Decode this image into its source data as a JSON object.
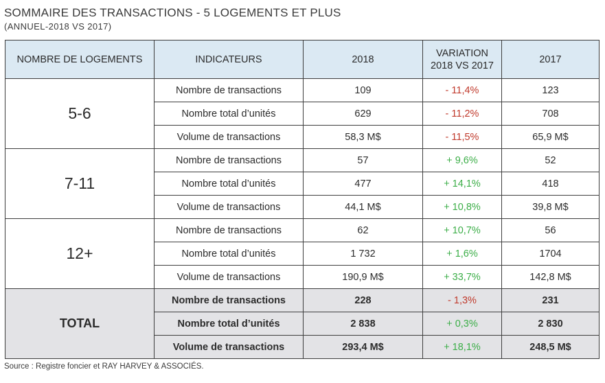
{
  "title": "SOMMAIRE DES TRANSACTIONS - 5 LOGEMENTS ET PLUS",
  "subtitle": "(ANNUEL-2018 VS 2017)",
  "headers": {
    "group": "NOMBRE DE LOGEMENTS",
    "indicator": "INDICATEURS",
    "y2018": "2018",
    "variation_line1": "VARIATION",
    "variation_line2": "2018 VS 2017",
    "y2017": "2017"
  },
  "colors": {
    "header_bg": "#dbe9f3",
    "total_bg": "#e3e3e6",
    "negative": "#c0392b",
    "positive": "#3cae48"
  },
  "groups": [
    {
      "label": "5-6",
      "rows": [
        {
          "indicator": "Nombre de transactions",
          "y2018": "109",
          "variation": "- 11,4%",
          "trend": "neg",
          "y2017": "123"
        },
        {
          "indicator": "Nombre total d’unités",
          "y2018": "629",
          "variation": "- 11,2%",
          "trend": "neg",
          "y2017": "708"
        },
        {
          "indicator": "Volume de transactions",
          "y2018": "58,3 M$",
          "variation": "- 11,5%",
          "trend": "neg",
          "y2017": "65,9 M$"
        }
      ]
    },
    {
      "label": "7-11",
      "rows": [
        {
          "indicator": "Nombre de transactions",
          "y2018": "57",
          "variation": "+ 9,6%",
          "trend": "pos",
          "y2017": "52"
        },
        {
          "indicator": "Nombre total d’unités",
          "y2018": "477",
          "variation": "+ 14,1%",
          "trend": "pos",
          "y2017": "418"
        },
        {
          "indicator": "Volume de transactions",
          "y2018": "44,1 M$",
          "variation": "+ 10,8%",
          "trend": "pos",
          "y2017": "39,8 M$"
        }
      ]
    },
    {
      "label": "12+",
      "rows": [
        {
          "indicator": "Nombre de transactions",
          "y2018": "62",
          "variation": "+ 10,7%",
          "trend": "pos",
          "y2017": "56"
        },
        {
          "indicator": "Nombre total d’unités",
          "y2018": "1 732",
          "variation": "+ 1,6%",
          "trend": "pos",
          "y2017": "1704"
        },
        {
          "indicator": "Volume de transactions",
          "y2018": "190,9 M$",
          "variation": "+ 33,7%",
          "trend": "pos",
          "y2017": "142,8 M$"
        }
      ]
    },
    {
      "label": "TOTAL",
      "rows": [
        {
          "indicator": "Nombre de transactions",
          "y2018": "228",
          "variation": "- 1,3%",
          "trend": "neg",
          "y2017": "231"
        },
        {
          "indicator": "Nombre total d’unités",
          "y2018": "2 838",
          "variation": "+ 0,3%",
          "trend": "pos",
          "y2017": "2 830"
        },
        {
          "indicator": "Volume de transactions",
          "y2018": "293,4 M$",
          "variation": "+ 18,1%",
          "trend": "pos",
          "y2017": "248,5 M$"
        }
      ]
    }
  ],
  "source": "Source : Registre foncier et RAY HARVEY & ASSOCIÉS."
}
